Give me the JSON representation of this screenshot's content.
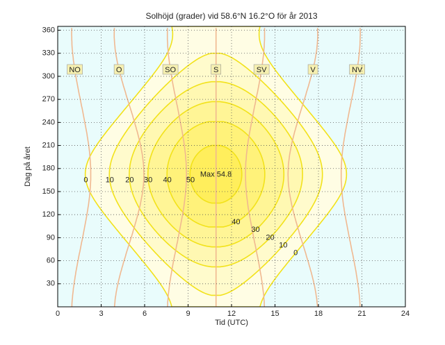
{
  "chart_data": {
    "type": "contour",
    "title": "Solhöjd (grader) vid 58.6°N 16.2°O för år 2013",
    "x_label": "Tid (UTC)",
    "y_label": "Dag på året",
    "latitude": 58.6,
    "longitude": 16.2,
    "xlim": [
      0,
      24
    ],
    "xticks": [
      0,
      3,
      6,
      9,
      12,
      15,
      18,
      21,
      24
    ],
    "ylim": [
      0,
      365
    ],
    "yticks": [
      30,
      60,
      90,
      120,
      150,
      180,
      210,
      240,
      270,
      300,
      330,
      360
    ],
    "grid": true,
    "levels": [
      0,
      10,
      20,
      30,
      40,
      50
    ],
    "level_colors": [
      "#fffde4",
      "#fffbcc",
      "#fff8b2",
      "#fff596",
      "#fff27a",
      "#ffee5c"
    ],
    "line_color": "#f2e21a",
    "background": "#e9fcfc",
    "max_label": "Max 54.8",
    "directions": [
      {
        "label": "NO",
        "azimuth": 45
      },
      {
        "label": "O",
        "azimuth": 90
      },
      {
        "label": "SO",
        "azimuth": 135
      },
      {
        "label": "S",
        "azimuth": 180
      },
      {
        "label": "SV",
        "azimuth": 225
      },
      {
        "label": "V",
        "azimuth": 270
      },
      {
        "label": "NV",
        "azimuth": 315
      }
    ],
    "direction_color": "#f0b890"
  }
}
